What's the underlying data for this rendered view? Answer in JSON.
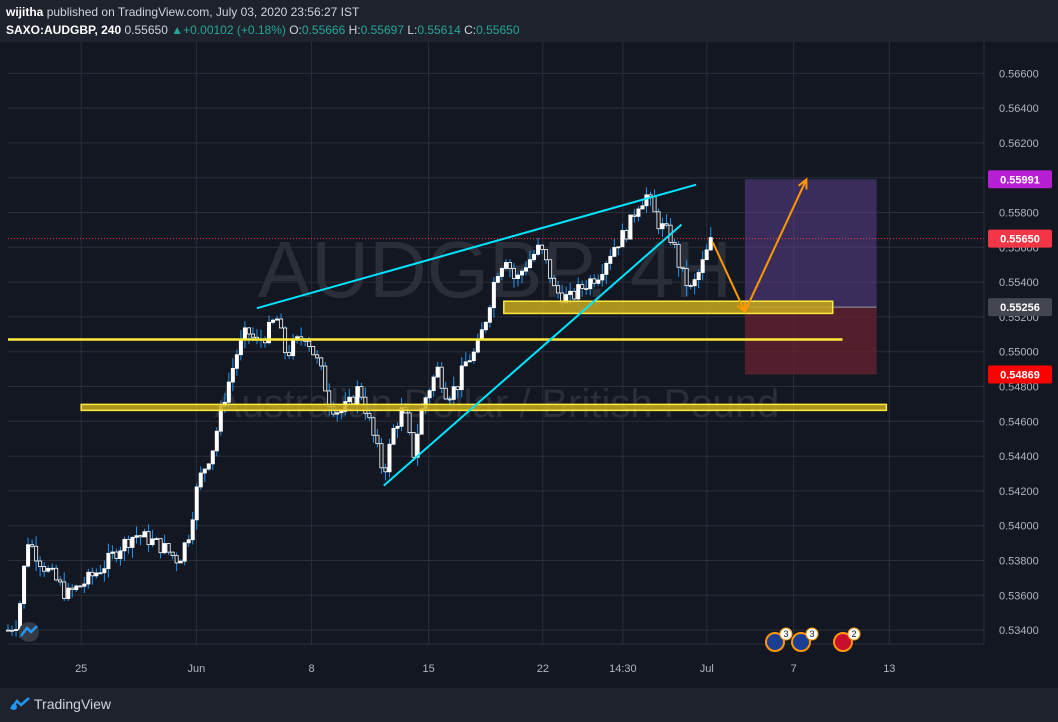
{
  "header": {
    "author": "wijitha",
    "published_text": "published on TradingView.com, July 03, 2020 23:56:27 IST",
    "symbol": "SAXO:AUDGBP, 240",
    "last": "0.55650",
    "change": "+0.00102 (+0.18%)",
    "o_label": "O:",
    "o_value": "0.55666",
    "h_label": "H:",
    "h_value": "0.55697",
    "l_label": "L:",
    "l_value": "0.55614",
    "c_label": "C:",
    "c_value": "0.55650"
  },
  "watermark": {
    "ticker": "AUDGBP, 4H",
    "name": "Australian Dollar / British Pound"
  },
  "footer": {
    "brand": "TradingView"
  },
  "colors": {
    "background": "#131722",
    "panel": "#1e222d",
    "grid": "#2a2e39",
    "candle_up": "#ffffff",
    "candle_down": "#ffffff",
    "wick": "#2196f3",
    "trendline": "#00e5ff",
    "support": "#ffeb3b",
    "zone_fill": "#c8a81f",
    "arrow": "#ff9800",
    "target_fill": "#5b3f8c",
    "stop_fill": "#6a2330",
    "label_target": "#b71fd4",
    "label_last": "#f23645",
    "label_entry": "#434651",
    "label_stop": "#ff0000"
  },
  "events": [
    {
      "icon": "au-flag-icon",
      "count": "3"
    },
    {
      "icon": "au-flag-icon",
      "count": "3"
    },
    {
      "icon": "gb-flag-icon",
      "count": "2"
    }
  ],
  "chart_data": {
    "type": "candlestick",
    "y_ticks": [
      "0.56600",
      "0.56400",
      "0.56200",
      "0.56000",
      "0.55800",
      "0.55600",
      "0.55400",
      "0.55200",
      "0.55000",
      "0.54800",
      "0.54600",
      "0.54400",
      "0.54200",
      "0.54000",
      "0.53800",
      "0.53600",
      "0.53400"
    ],
    "x_ticks": [
      "25",
      "Jun",
      "8",
      "15",
      "22",
      "14:30",
      "Jul",
      "7",
      "13"
    ],
    "ylim": [
      0.5332,
      0.5678
    ],
    "price_labels": [
      {
        "value": "0.55991",
        "role": "target"
      },
      {
        "value": "0.55650",
        "role": "last"
      },
      {
        "value": "0.55256",
        "role": "entry"
      },
      {
        "value": "0.54869",
        "role": "stop"
      }
    ],
    "last_price": 0.5565,
    "support_levels": [
      0.5507,
      0.5468
    ],
    "resistance_zone": [
      0.5522,
      0.5529
    ],
    "trendlines": [
      {
        "x": [
          0.255,
          0.705
        ],
        "y": [
          0.5525,
          0.5596
        ]
      },
      {
        "x": [
          0.385,
          0.69
        ],
        "y": [
          0.5423,
          0.5573
        ]
      }
    ],
    "projection": {
      "entry": 0.55256,
      "target": 0.55991,
      "stop": 0.54869,
      "x_range": [
        0.755,
        0.89
      ]
    },
    "arrows": [
      {
        "x": [
          0.722,
          0.755
        ],
        "y": [
          0.5563,
          0.5523
        ]
      },
      {
        "x": [
          0.755,
          0.818
        ],
        "y": [
          0.5523,
          0.5599
        ]
      }
    ],
    "candle_waypoints": [
      [
        0.0,
        0.534
      ],
      [
        0.01,
        0.5345
      ],
      [
        0.02,
        0.5392
      ],
      [
        0.035,
        0.5378
      ],
      [
        0.05,
        0.5368
      ],
      [
        0.06,
        0.536
      ],
      [
        0.08,
        0.5368
      ],
      [
        0.1,
        0.5378
      ],
      [
        0.115,
        0.5388
      ],
      [
        0.13,
        0.5395
      ],
      [
        0.145,
        0.5392
      ],
      [
        0.16,
        0.5387
      ],
      [
        0.175,
        0.538
      ],
      [
        0.185,
        0.5395
      ],
      [
        0.195,
        0.5425
      ],
      [
        0.21,
        0.5445
      ],
      [
        0.22,
        0.547
      ],
      [
        0.235,
        0.55
      ],
      [
        0.245,
        0.5512
      ],
      [
        0.255,
        0.5505
      ],
      [
        0.265,
        0.551
      ],
      [
        0.275,
        0.552
      ],
      [
        0.285,
        0.5498
      ],
      [
        0.295,
        0.5505
      ],
      [
        0.305,
        0.551
      ],
      [
        0.32,
        0.549
      ],
      [
        0.33,
        0.547
      ],
      [
        0.34,
        0.5465
      ],
      [
        0.35,
        0.547
      ],
      [
        0.36,
        0.548
      ],
      [
        0.37,
        0.546
      ],
      [
        0.385,
        0.543
      ],
      [
        0.395,
        0.5455
      ],
      [
        0.405,
        0.5468
      ],
      [
        0.415,
        0.544
      ],
      [
        0.425,
        0.547
      ],
      [
        0.44,
        0.549
      ],
      [
        0.45,
        0.5475
      ],
      [
        0.46,
        0.548
      ],
      [
        0.47,
        0.5495
      ],
      [
        0.48,
        0.55
      ],
      [
        0.49,
        0.552
      ],
      [
        0.5,
        0.5545
      ],
      [
        0.51,
        0.5555
      ],
      [
        0.52,
        0.554
      ],
      [
        0.53,
        0.555
      ],
      [
        0.545,
        0.556
      ],
      [
        0.555,
        0.5545
      ],
      [
        0.56,
        0.5535
      ],
      [
        0.575,
        0.553
      ],
      [
        0.59,
        0.5538
      ],
      [
        0.605,
        0.5545
      ],
      [
        0.62,
        0.556
      ],
      [
        0.635,
        0.557
      ],
      [
        0.645,
        0.5585
      ],
      [
        0.655,
        0.559
      ],
      [
        0.665,
        0.5575
      ],
      [
        0.68,
        0.5565
      ],
      [
        0.69,
        0.5545
      ],
      [
        0.7,
        0.5535
      ],
      [
        0.71,
        0.5548
      ],
      [
        0.72,
        0.5563
      ]
    ]
  }
}
